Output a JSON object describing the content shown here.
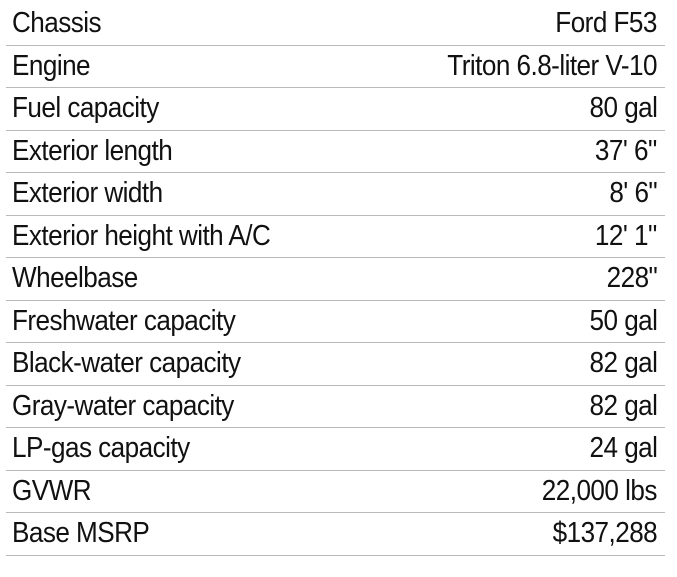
{
  "specs": {
    "rows": [
      {
        "label": "Chassis",
        "value": "Ford F53"
      },
      {
        "label": "Engine",
        "value": "Triton 6.8-liter V-10"
      },
      {
        "label": "Fuel capacity",
        "value": "80 gal"
      },
      {
        "label": "Exterior length",
        "value": "37' 6\""
      },
      {
        "label": "Exterior width",
        "value": "8' 6\""
      },
      {
        "label": "Exterior height with A/C",
        "value": "12' 1\""
      },
      {
        "label": "Wheelbase",
        "value": "228\""
      },
      {
        "label": "Freshwater capacity",
        "value": "50 gal"
      },
      {
        "label": "Black-water capacity",
        "value": "82 gal"
      },
      {
        "label": "Gray-water capacity",
        "value": "82 gal"
      },
      {
        "label": "LP-gas capacity",
        "value": "24 gal"
      },
      {
        "label": "GVWR",
        "value": "22,000 lbs"
      },
      {
        "label": "Base MSRP",
        "value": "$137,288"
      }
    ]
  }
}
